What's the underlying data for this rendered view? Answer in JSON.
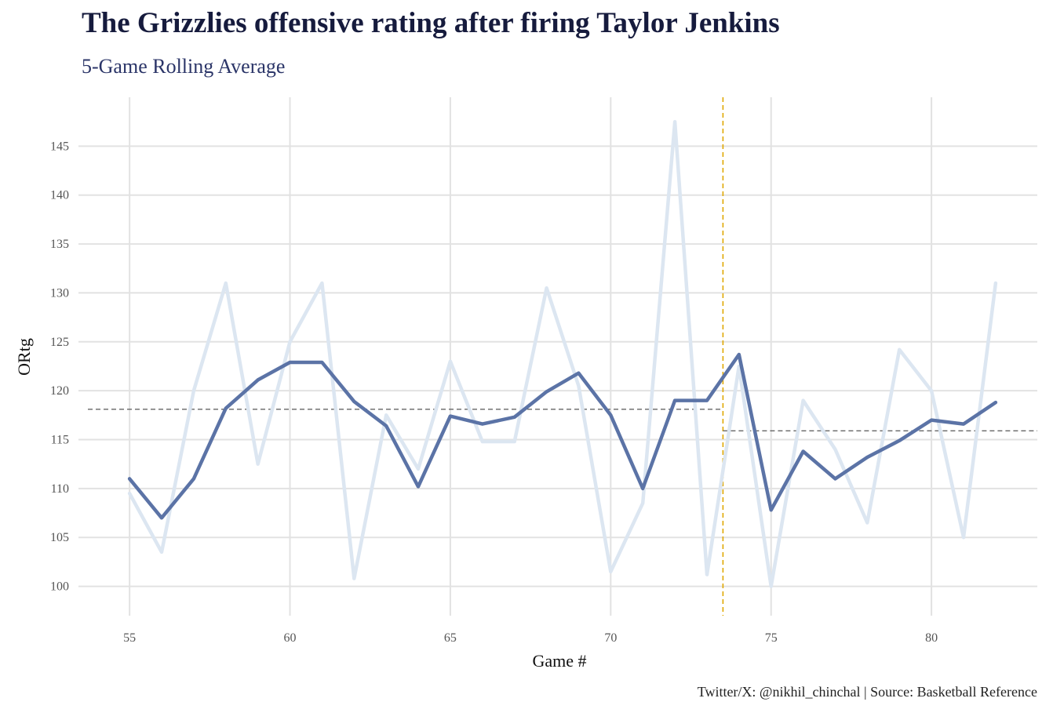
{
  "title": "The Grizzlies offensive rating after firing Taylor Jenkins",
  "subtitle": "5-Game Rolling Average",
  "caption": "Twitter/X: @nikhil_chinchal | Source: Basketball Reference",
  "colors": {
    "game_line": "#dce6f1",
    "rolling_line": "#5b73a6",
    "grid": "#e2e2e2",
    "firing_marker": "#e0a800",
    "average_line": "#666666",
    "title": "#161b3d",
    "subtitle": "#2b3568"
  },
  "chart_data": {
    "type": "line",
    "xlabel": "Game #",
    "ylabel": "ORtg",
    "xlim": [
      53.7,
      83.3
    ],
    "ylim": [
      97,
      150
    ],
    "x_ticks": [
      55,
      60,
      65,
      70,
      75,
      80
    ],
    "y_ticks": [
      100,
      105,
      110,
      115,
      120,
      125,
      130,
      135,
      140,
      145
    ],
    "grid": true,
    "legend": "none",
    "series": [
      {
        "role": "game",
        "x": [
          55,
          56,
          57,
          58,
          59,
          60,
          61,
          62,
          63,
          64,
          65,
          66,
          67,
          68,
          69,
          70,
          71,
          72,
          73,
          74,
          75,
          76,
          77,
          78,
          79,
          80,
          81,
          82
        ],
        "values": [
          109.5,
          103.5,
          120.0,
          131.0,
          112.5,
          125.0,
          131.0,
          100.8,
          117.5,
          112.0,
          123.0,
          114.8,
          114.8,
          130.5,
          120.5,
          101.5,
          108.5,
          147.5,
          101.2,
          122.5,
          100.0,
          119.0,
          114.0,
          106.5,
          124.2,
          120.0,
          105.0,
          131.0
        ]
      },
      {
        "role": "rolling",
        "x": [
          55,
          56,
          57,
          58,
          59,
          60,
          61,
          62,
          63,
          64,
          65,
          66,
          67,
          68,
          69,
          70,
          71,
          72,
          73,
          74,
          75,
          76,
          77,
          78,
          79,
          80,
          81,
          82
        ],
        "values": [
          111.0,
          107.0,
          111.0,
          118.2,
          121.1,
          122.9,
          122.9,
          118.9,
          116.4,
          110.2,
          117.4,
          116.6,
          117.3,
          119.9,
          121.8,
          117.5,
          110.0,
          119.0,
          119.0,
          123.7,
          107.8,
          113.8,
          111.0,
          113.2,
          114.9,
          117.0,
          116.6,
          118.8
        ]
      }
    ],
    "reference_lines": [
      {
        "type": "vertical",
        "x": 73.5
      },
      {
        "type": "horizontal",
        "y": 118.1,
        "x_range": [
          53.7,
          73.5
        ]
      },
      {
        "type": "horizontal",
        "y": 115.9,
        "x_range": [
          73.5,
          83.3
        ]
      }
    ]
  }
}
